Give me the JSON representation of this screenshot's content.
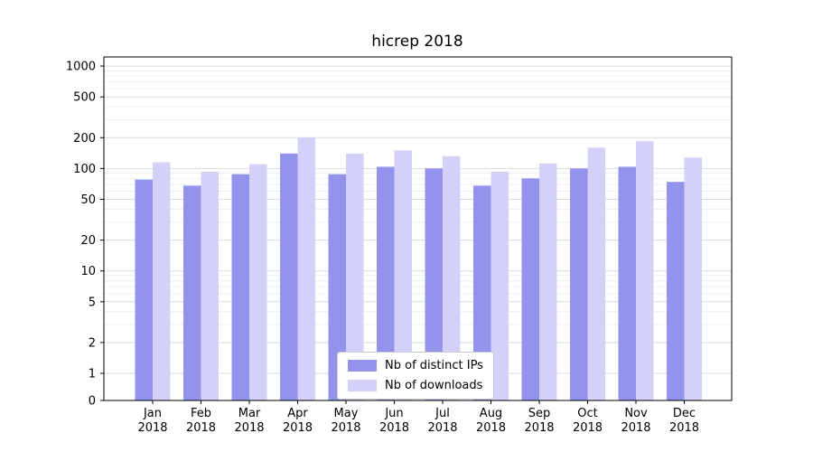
{
  "chart_data": {
    "type": "bar",
    "title": "hicrep 2018",
    "categories": [
      "Jan 2018",
      "Feb 2018",
      "Mar 2018",
      "Apr 2018",
      "May 2018",
      "Jun 2018",
      "Jul 2018",
      "Aug 2018",
      "Sep 2018",
      "Oct 2018",
      "Nov 2018",
      "Dec 2018"
    ],
    "series": [
      {
        "name": "Nb of distinct IPs",
        "color": "#9393ee",
        "values": [
          78,
          68,
          88,
          140,
          88,
          104,
          100,
          68,
          80,
          100,
          104,
          74
        ]
      },
      {
        "name": "Nb of downloads",
        "color": "#d3d1f8",
        "values": [
          115,
          93,
          110,
          200,
          140,
          150,
          132,
          93,
          112,
          160,
          185,
          128
        ]
      }
    ],
    "yscale": "symlog",
    "yticks": [
      0,
      1,
      2,
      5,
      10,
      20,
      50,
      100,
      200,
      500,
      1000
    ],
    "ylim": [
      0,
      1300
    ],
    "xlabel": "",
    "ylabel": "",
    "grid": "horizontal",
    "legend_position": "lower-center",
    "colors": {
      "axis": "#000000",
      "grid_major": "#d9d9d9",
      "grid_minor": "#efefef",
      "background": "#ffffff"
    }
  }
}
